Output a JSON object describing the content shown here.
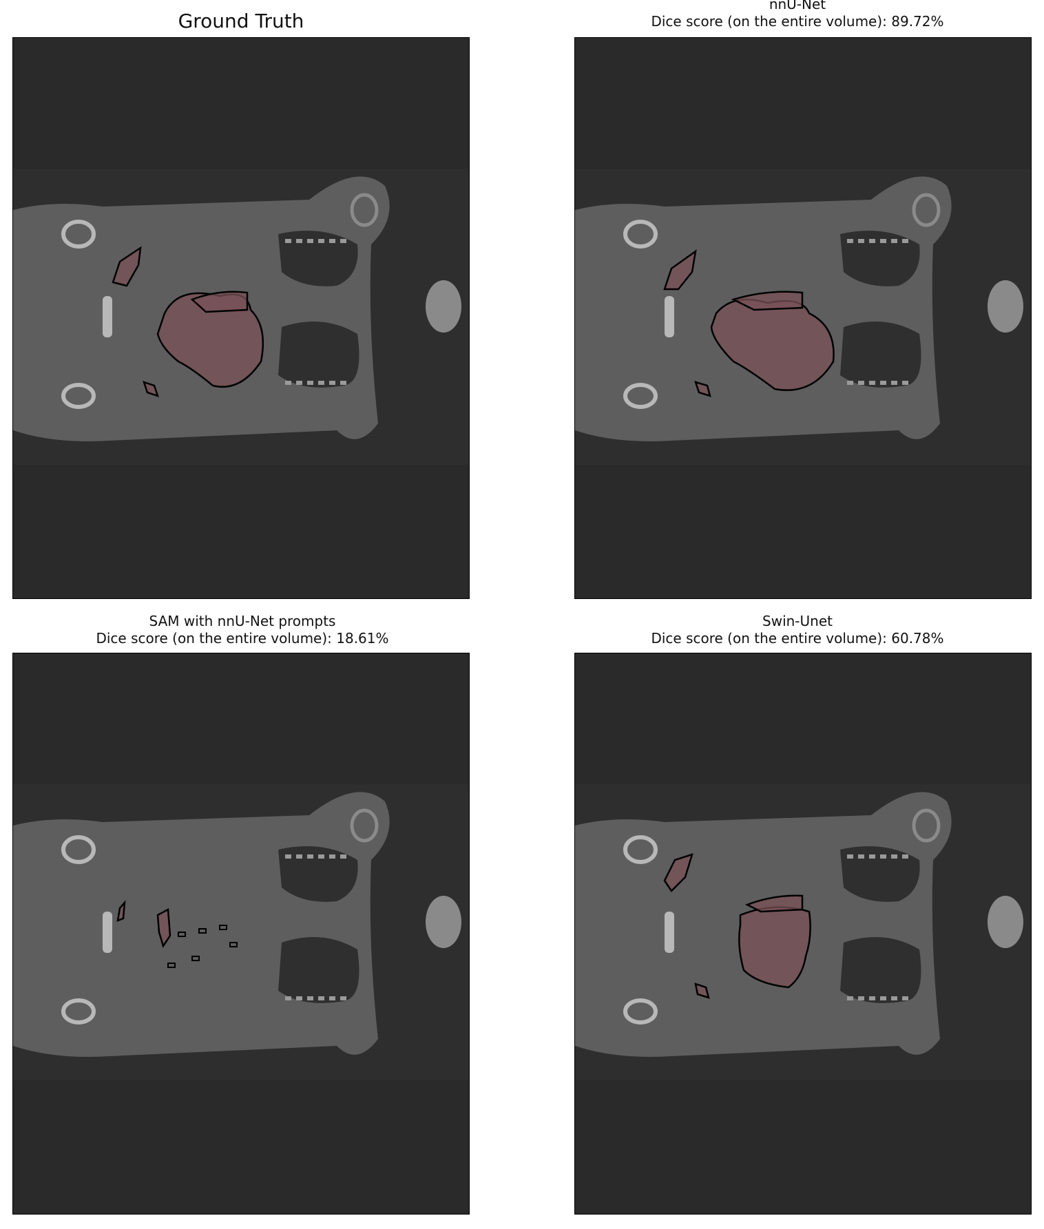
{
  "figure": {
    "panels": [
      {
        "id": "ground-truth",
        "title_line1": "Ground Truth",
        "title_line2": ""
      },
      {
        "id": "nnunet",
        "title_line1": "nnU-Net",
        "title_line2": "Dice score (on the entire volume): 89.72%"
      },
      {
        "id": "sam",
        "title_line1": "SAM with nnU-Net prompts",
        "title_line2": "Dice score (on the entire volume): 18.61%"
      },
      {
        "id": "swin",
        "title_line1": "Swin-Unet",
        "title_line2": "Dice score (on the entire volume): 60.78%"
      }
    ],
    "colors": {
      "background": "#2a2a2a",
      "body": "#5e5e5e",
      "lung": "#2f2f2f",
      "bone": "#b8b8b8",
      "mask_fill": "#7a5258",
      "contour": "#000000"
    }
  }
}
